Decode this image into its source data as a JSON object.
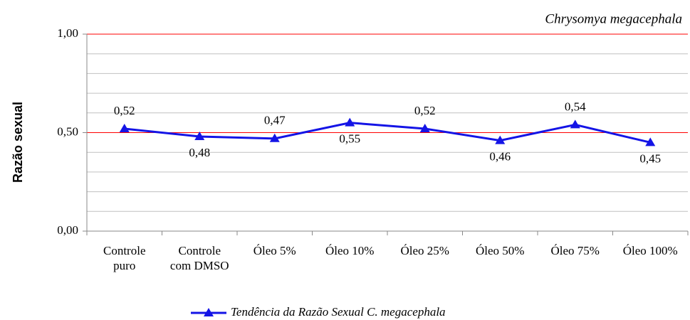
{
  "chart_data": {
    "type": "line",
    "title": "Chrysomya megacephala",
    "y_label": "Razão sexual",
    "categories": [
      "Controle puro",
      "Controle com DMSO",
      "Óleo 5%",
      "Óleo 10%",
      "Óleo 25%",
      "Óleo 50%",
      "Óleo 75%",
      "Óleo 100%"
    ],
    "series": [
      {
        "name": "Tendência da Razão Sexual C. megacephala",
        "color": "#1414e6",
        "values": [
          0.52,
          0.48,
          0.47,
          0.55,
          0.52,
          0.46,
          0.54,
          0.45
        ],
        "value_labels": [
          "0,52",
          "0,48",
          "0,47",
          "0,55",
          "0,52",
          "0,46",
          "0,54",
          "0,45"
        ]
      }
    ],
    "ylim": [
      0,
      1
    ],
    "yticks": [
      {
        "value": 0,
        "label": "0,00"
      },
      {
        "value": 0.5,
        "label": "0,50"
      },
      {
        "value": 1,
        "label": "1,00"
      }
    ],
    "minor_yticks": [
      0.1,
      0.2,
      0.3,
      0.4,
      0.6,
      0.7,
      0.8,
      0.9
    ],
    "major_grid_color": "#ff0000",
    "minor_grid_color": "#c0c0c0",
    "legend": "bottom"
  }
}
